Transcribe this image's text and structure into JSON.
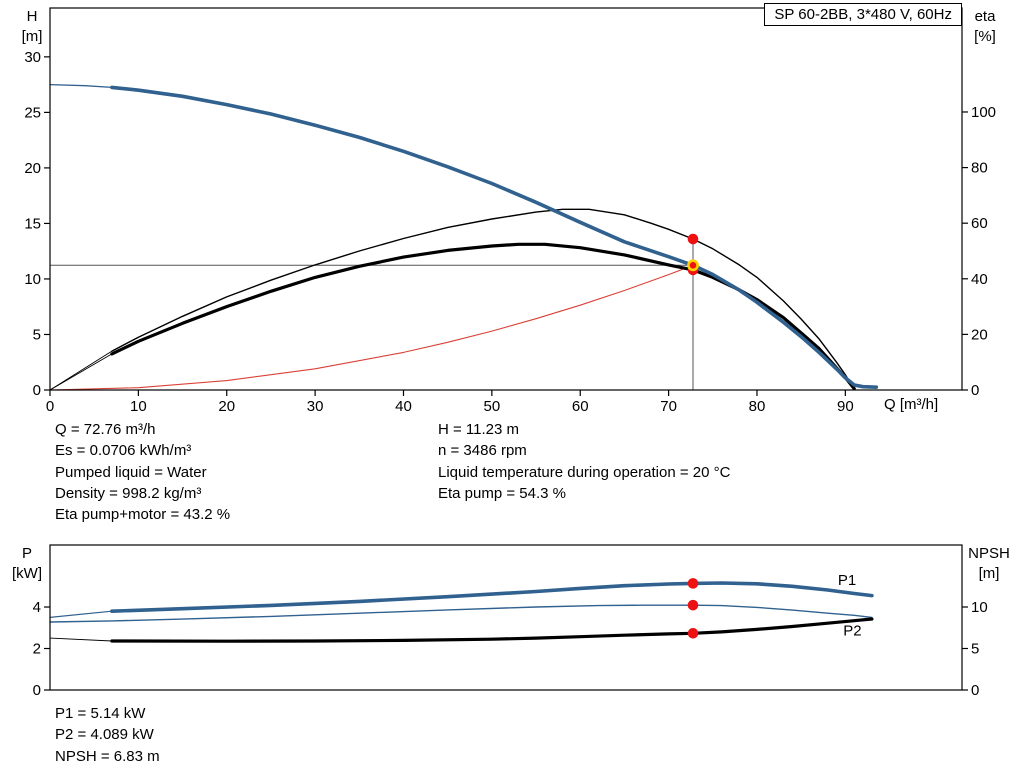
{
  "colors": {
    "curve_blue": "#30618f",
    "curve_black": "#000000",
    "curve_red": "#d94136",
    "marker_red": "#ee1111",
    "marker_ring_yellow": "#ffd200",
    "reference_gray": "#555555",
    "frame_black": "#000000"
  },
  "title_box": {
    "text": "SP 60-2BB, 3*480 V, 60Hz"
  },
  "annotations": {
    "left": [
      "Q = 72.76 m³/h",
      "Es = 0.0706 kWh/m³",
      "Pumped liquid = Water",
      "Density = 998.2 kg/m³",
      "Eta pump+motor = 43.2 %"
    ],
    "right": [
      "H = 11.23 m",
      "n = 3486 rpm",
      "Liquid temperature during operation = 20 °C",
      "Eta pump = 54.3 %"
    ],
    "bottom": [
      "P1 = 5.14 kW",
      "P2 = 4.089 kW",
      "NPSH = 6.83 m"
    ]
  },
  "chart_data": [
    {
      "type": "line",
      "name": "qh-eta-chart",
      "title": "SP 60-2BB, 3*480 V, 60Hz",
      "grid": false,
      "x_axis": {
        "label": "Q [m³/h]",
        "min": 0,
        "max": 103.2,
        "ticks": [
          0,
          10,
          20,
          30,
          40,
          50,
          60,
          70,
          80,
          90
        ]
      },
      "y_left": {
        "title_lines": [
          "H",
          "[m]"
        ],
        "min": 0,
        "max": 34.4,
        "ticks": [
          0,
          5,
          10,
          15,
          20,
          25,
          30
        ]
      },
      "y_right": {
        "title_lines": [
          "eta",
          "[%]"
        ],
        "min": 0,
        "max": 137.4,
        "ticks": [
          0,
          20,
          40,
          60,
          80,
          100
        ]
      },
      "duty_point": {
        "q": 72.76,
        "h": 11.23,
        "eta_pump": 54.3,
        "eta_pump_motor": 43.2
      },
      "series": [
        {
          "name": "h-reference-line",
          "axis": "left",
          "color": "#555555",
          "width": 1,
          "points": [
            [
              0,
              11.23
            ],
            [
              72.76,
              11.23
            ]
          ]
        },
        {
          "name": "q-reference-line",
          "axis": "left",
          "color": "#555555",
          "width": 1,
          "points": [
            [
              72.76,
              0
            ],
            [
              72.76,
              13.62
            ]
          ]
        },
        {
          "name": "system-curve-red",
          "axis": "left",
          "color": "#d94136",
          "width": 1.1,
          "points": [
            [
              0,
              0
            ],
            [
              10,
              0.21
            ],
            [
              20,
              0.85
            ],
            [
              30,
              1.91
            ],
            [
              40,
              3.39
            ],
            [
              45,
              4.3
            ],
            [
              50,
              5.3
            ],
            [
              55,
              6.42
            ],
            [
              60,
              7.64
            ],
            [
              65,
              8.96
            ],
            [
              70,
              10.39
            ],
            [
              72.76,
              11.23
            ]
          ]
        },
        {
          "name": "hq-lead",
          "axis": "left",
          "color": "#30618f",
          "width": 1.3,
          "points": [
            [
              0,
              27.5
            ],
            [
              4,
              27.4
            ],
            [
              7,
              27.25
            ]
          ]
        },
        {
          "name": "eta-pump-lead",
          "axis": "right",
          "color": "#000000",
          "width": 0.9,
          "points": [
            [
              0,
              0
            ],
            [
              7,
              14
            ]
          ]
        },
        {
          "name": "eta-pump-motor-lead",
          "axis": "right",
          "color": "#000000",
          "width": 0.9,
          "points": [
            [
              0,
              0
            ],
            [
              7,
              13
            ]
          ]
        },
        {
          "name": "eta-pump-curve",
          "axis": "right",
          "color": "#000000",
          "width": 1.4,
          "points": [
            [
              7,
              14
            ],
            [
              10,
              19
            ],
            [
              15,
              26.5
            ],
            [
              20,
              33.5
            ],
            [
              25,
              39.5
            ],
            [
              30,
              45
            ],
            [
              35,
              50
            ],
            [
              40,
              54.5
            ],
            [
              45,
              58.5
            ],
            [
              50,
              61.5
            ],
            [
              55,
              64
            ],
            [
              58,
              65
            ],
            [
              61,
              65
            ],
            [
              65,
              63
            ],
            [
              68,
              60
            ],
            [
              70,
              57.8
            ],
            [
              72.76,
              54.3
            ],
            [
              75,
              50.8
            ],
            [
              78,
              45
            ],
            [
              80,
              40.5
            ],
            [
              83,
              32
            ],
            [
              85,
              25.5
            ],
            [
              87,
              18.5
            ],
            [
              89,
              10
            ],
            [
              90,
              5.5
            ],
            [
              91,
              0.5
            ]
          ]
        },
        {
          "name": "eta-pump-motor-curve",
          "axis": "right",
          "color": "#000000",
          "width": 3.2,
          "points": [
            [
              7,
              13
            ],
            [
              10,
              17.5
            ],
            [
              15,
              24
            ],
            [
              20,
              30
            ],
            [
              25,
              35.5
            ],
            [
              30,
              40.5
            ],
            [
              35,
              44.5
            ],
            [
              40,
              47.8
            ],
            [
              45,
              50.2
            ],
            [
              50,
              51.8
            ],
            [
              53,
              52.4
            ],
            [
              56,
              52.4
            ],
            [
              60,
              51.2
            ],
            [
              65,
              48.6
            ],
            [
              70,
              45
            ],
            [
              72.76,
              43.2
            ],
            [
              75,
              40.5
            ],
            [
              78,
              36
            ],
            [
              80,
              32.5
            ],
            [
              83,
              26
            ],
            [
              85,
              20.5
            ],
            [
              87,
              15
            ],
            [
              89,
              8
            ],
            [
              90,
              4.5
            ],
            [
              91,
              0.5
            ]
          ]
        },
        {
          "name": "hq-curve",
          "axis": "left",
          "color": "#30618f",
          "width": 3.6,
          "points": [
            [
              7,
              27.25
            ],
            [
              10,
              27.0
            ],
            [
              15,
              26.45
            ],
            [
              20,
              25.7
            ],
            [
              25,
              24.85
            ],
            [
              30,
              23.85
            ],
            [
              35,
              22.75
            ],
            [
              40,
              21.5
            ],
            [
              45,
              20.1
            ],
            [
              50,
              18.6
            ],
            [
              55,
              16.9
            ],
            [
              60,
              15.1
            ],
            [
              65,
              13.35
            ],
            [
              70,
              12.0
            ],
            [
              72.76,
              11.23
            ],
            [
              75,
              10.4
            ],
            [
              78,
              9.0
            ],
            [
              80,
              7.9
            ],
            [
              83,
              6.1
            ],
            [
              85,
              4.8
            ],
            [
              87,
              3.4
            ],
            [
              89,
              1.9
            ],
            [
              90,
              1.1
            ],
            [
              91,
              0.45
            ],
            [
              92,
              0.3
            ],
            [
              93.5,
              0.25
            ]
          ]
        }
      ],
      "markers": [
        {
          "axis": "right",
          "q": 72.76,
          "v": 54.3,
          "style": "red",
          "name": "eta-pump-duty-dot"
        },
        {
          "axis": "right",
          "q": 72.76,
          "v": 43.2,
          "style": "red",
          "name": "eta-pump-motor-duty-dot"
        },
        {
          "axis": "left",
          "q": 72.76,
          "v": 11.23,
          "style": "duty",
          "name": "qh-duty-point"
        }
      ],
      "labels": []
    },
    {
      "type": "line",
      "name": "power-npsh-chart",
      "grid": false,
      "x_axis": {
        "label": "",
        "min": 0,
        "max": 103.2,
        "ticks": []
      },
      "y_left": {
        "title_lines": [
          "P",
          "[kW]"
        ],
        "min": 0,
        "max": 6.99,
        "ticks": [
          0,
          2,
          4
        ]
      },
      "y_right": {
        "title_lines": [
          "NPSH",
          "[m]"
        ],
        "min": 0,
        "max": 17.47,
        "ticks": [
          0,
          5,
          10
        ]
      },
      "duty_point": {
        "q": 72.76,
        "p1_kw": 5.14,
        "p2_kw": 4.089,
        "npsh_m": 6.83
      },
      "series": [
        {
          "name": "p1-lead",
          "axis": "left",
          "color": "#30618f",
          "width": 1.2,
          "points": [
            [
              0,
              3.5
            ],
            [
              7,
              3.8
            ]
          ]
        },
        {
          "name": "npsh-lead",
          "axis": "right",
          "color": "#000000",
          "width": 0.9,
          "points": [
            [
              0,
              6.25
            ],
            [
              7,
              5.9
            ]
          ]
        },
        {
          "name": "p2-curve",
          "axis": "left",
          "color": "#30618f",
          "width": 1.4,
          "points": [
            [
              0,
              3.28
            ],
            [
              7,
              3.33
            ],
            [
              15,
              3.42
            ],
            [
              25,
              3.55
            ],
            [
              35,
              3.7
            ],
            [
              45,
              3.86
            ],
            [
              55,
              4.0
            ],
            [
              62,
              4.07
            ],
            [
              67,
              4.09
            ],
            [
              70,
              4.09
            ],
            [
              72.76,
              4.089
            ],
            [
              76,
              4.07
            ],
            [
              80,
              3.98
            ],
            [
              84,
              3.85
            ],
            [
              88,
              3.7
            ],
            [
              91,
              3.6
            ],
            [
              93,
              3.5
            ]
          ]
        },
        {
          "name": "npsh-curve",
          "axis": "right",
          "color": "#000000",
          "width": 3.2,
          "points": [
            [
              7,
              5.9
            ],
            [
              20,
              5.88
            ],
            [
              30,
              5.9
            ],
            [
              40,
              5.98
            ],
            [
              50,
              6.12
            ],
            [
              55,
              6.25
            ],
            [
              60,
              6.42
            ],
            [
              65,
              6.6
            ],
            [
              70,
              6.76
            ],
            [
              72.76,
              6.83
            ],
            [
              76,
              7.0
            ],
            [
              80,
              7.3
            ],
            [
              84,
              7.65
            ],
            [
              88,
              8.05
            ],
            [
              91,
              8.35
            ],
            [
              93,
              8.55
            ]
          ]
        },
        {
          "name": "p1-curve",
          "axis": "left",
          "color": "#30618f",
          "width": 3.6,
          "points": [
            [
              7,
              3.8
            ],
            [
              15,
              3.92
            ],
            [
              25,
              4.08
            ],
            [
              35,
              4.27
            ],
            [
              45,
              4.5
            ],
            [
              55,
              4.75
            ],
            [
              60,
              4.9
            ],
            [
              65,
              5.03
            ],
            [
              70,
              5.11
            ],
            [
              72.76,
              5.14
            ],
            [
              76,
              5.16
            ],
            [
              80,
              5.12
            ],
            [
              84,
              5.0
            ],
            [
              88,
              4.82
            ],
            [
              91,
              4.65
            ],
            [
              93,
              4.55
            ]
          ]
        }
      ],
      "markers": [
        {
          "axis": "left",
          "q": 72.76,
          "v": 5.14,
          "style": "red",
          "name": "p1-duty-dot"
        },
        {
          "axis": "left",
          "q": 72.76,
          "v": 4.089,
          "style": "red",
          "name": "p2-duty-dot"
        },
        {
          "axis": "right",
          "q": 72.76,
          "v": 6.83,
          "style": "red",
          "name": "npsh-duty-dot"
        }
      ],
      "labels": [
        {
          "text": "P1",
          "axis": "left",
          "q": 90.2,
          "v": 5.05,
          "color": "#30618f"
        },
        {
          "text": "P2",
          "axis": "left",
          "q": 90.8,
          "v": 2.62,
          "color": "#30618f"
        }
      ]
    }
  ]
}
